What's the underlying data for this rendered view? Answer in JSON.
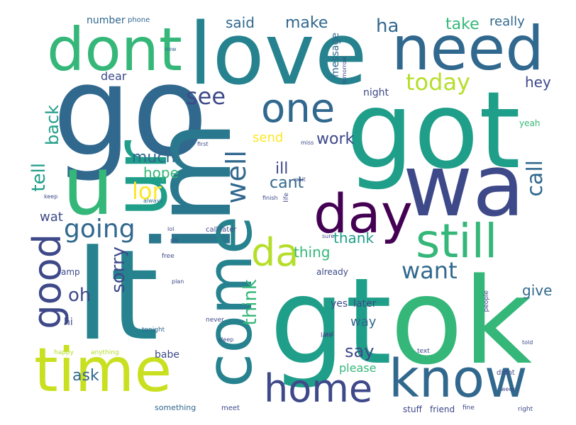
{
  "palette": {
    "deep_purple": "#440154",
    "indigo": "#3e4989",
    "blue": "#31688e",
    "teal_blue": "#26828e",
    "teal": "#1f9e89",
    "green": "#35b779",
    "light_green": "#6ece58",
    "lime": "#b5de2b",
    "yellow": "#fde725"
  },
  "words": [
    "go",
    "im",
    "got",
    "lt",
    "gt",
    "ok",
    "love",
    "dont",
    "need",
    "wa",
    "u",
    "ur",
    "come",
    "time",
    "know",
    "home",
    "day",
    "one",
    "still",
    "da",
    "good",
    "going",
    "want",
    "tell",
    "back",
    "see",
    "well",
    "today",
    "call",
    "lor",
    "sorry",
    "think",
    "oh",
    "send",
    "work",
    "much",
    "hope",
    "ill",
    "cant",
    "thank",
    "thing",
    "say",
    "give",
    "hey",
    "later",
    "way",
    "ask",
    "wat",
    "make",
    "ha",
    "take",
    "really",
    "said",
    "dear",
    "night",
    "yes",
    "babe",
    "please",
    "already",
    "number",
    "phone",
    "yeah",
    "hi",
    "something",
    "message",
    "amp",
    "friend",
    "stuff",
    "meet",
    "tonight",
    "text",
    "late",
    "happy",
    "anything",
    "always",
    "keep",
    "didnt",
    "free",
    "people",
    "first",
    "never",
    "life",
    "finish",
    "lol",
    "last",
    "sleep",
    "call later",
    "pls",
    "plan",
    "told",
    "week",
    "new",
    "tomorrow",
    "sure",
    "miss",
    "wait",
    "fine",
    "right"
  ]
}
